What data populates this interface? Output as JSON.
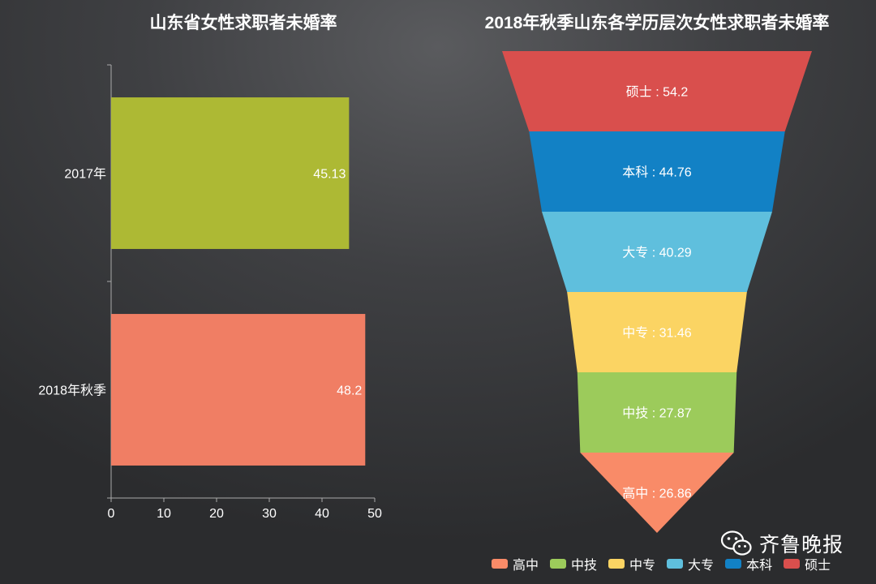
{
  "chart_data": [
    {
      "type": "bar",
      "orientation": "horizontal",
      "title": "山东省女性求职者未婚率",
      "categories": [
        "2017年",
        "2018年秋季"
      ],
      "values": [
        45.13,
        48.2
      ],
      "value_labels": [
        "45.13",
        "48.2"
      ],
      "colors": [
        "#adb934",
        "#f07e64"
      ],
      "xlim": [
        0,
        50
      ],
      "x_ticks": [
        "0",
        "10",
        "20",
        "30",
        "40",
        "50"
      ],
      "xlabel": "",
      "ylabel": "",
      "grid": false
    },
    {
      "type": "funnel",
      "title": "2018年秋季山东各学历层次女性求职者未婚率",
      "stages": [
        {
          "label": "硕士 : 54.2",
          "name": "硕士",
          "value": 54.2,
          "color": "#d94f4d"
        },
        {
          "label": "本科 : 44.76",
          "name": "本科",
          "value": 44.76,
          "color": "#1281c5"
        },
        {
          "label": "大专 : 40.29",
          "name": "大专",
          "value": 40.29,
          "color": "#5fbfdd"
        },
        {
          "label": "中专 : 31.46",
          "name": "中专",
          "value": 31.46,
          "color": "#fbd463"
        },
        {
          "label": "中技 : 27.87",
          "name": "中技",
          "value": 27.87,
          "color": "#9ccb5b"
        },
        {
          "label": "高中 : 26.86",
          "name": "高中",
          "value": 26.86,
          "color": "#f98b68"
        }
      ],
      "legend": [
        {
          "name": "高中",
          "color": "#f98b68"
        },
        {
          "name": "中技",
          "color": "#9ccb5b"
        },
        {
          "name": "中专",
          "color": "#fbd463"
        },
        {
          "name": "大专",
          "color": "#5fbfdd"
        },
        {
          "name": "本科",
          "color": "#1281c5"
        },
        {
          "name": "硕士",
          "color": "#d94f4d"
        }
      ],
      "legend_position": "bottom"
    }
  ],
  "watermark": {
    "text": "齐鲁晚报",
    "icon": "wechat-icon"
  }
}
